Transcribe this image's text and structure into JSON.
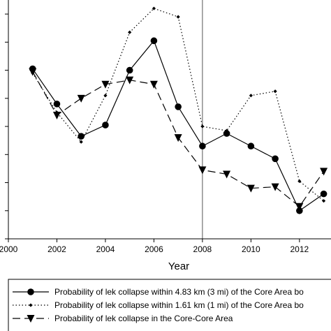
{
  "chart_data": {
    "type": "line",
    "xlabel": "Year",
    "ylabel": "",
    "xlim": [
      2000,
      2013.3
    ],
    "ylim": [
      0.0,
      0.85
    ],
    "x_ticks": [
      2000,
      2002,
      2004,
      2006,
      2008,
      2010,
      2012
    ],
    "y_ticks": [
      0.0,
      0.1,
      0.2,
      0.3,
      0.4,
      0.5,
      0.6,
      0.7,
      0.8
    ],
    "reference_line_x": 2008,
    "legend_position": "bottom",
    "grid": false,
    "series": [
      {
        "name": "Probability of lek collapse within 4.83 km (3 mi) of the Core Area bo",
        "style": "solid",
        "marker": "circle",
        "x": [
          2001,
          2002,
          2003,
          2004,
          2005,
          2006,
          2007,
          2008,
          2009,
          2010,
          2011,
          2012,
          2013
        ],
        "values": [
          0.605,
          0.48,
          0.365,
          0.405,
          0.6,
          0.705,
          0.47,
          0.33,
          0.375,
          0.33,
          0.285,
          0.1,
          0.16
        ]
      },
      {
        "name": "Probability of lek collapse within 1.61 km (1 mi) of the Core Area bo",
        "style": "dotted",
        "marker": "small-diamond",
        "x": [
          2001,
          2002,
          2003,
          2004,
          2005,
          2006,
          2007,
          2008,
          2009,
          2010,
          2011,
          2012,
          2013
        ],
        "values": [
          0.59,
          0.45,
          0.345,
          0.51,
          0.735,
          0.82,
          0.79,
          0.4,
          0.385,
          0.51,
          0.525,
          0.205,
          0.135
        ]
      },
      {
        "name": "Probability of lek collapse in the Core-Core Area",
        "style": "dashed",
        "marker": "triangle-down",
        "x": [
          2001,
          2002,
          2003,
          2004,
          2005,
          2006,
          2007,
          2008,
          2009,
          2010,
          2011,
          2012,
          2013
        ],
        "values": [
          0.595,
          0.44,
          0.5,
          0.55,
          0.565,
          0.55,
          0.36,
          0.245,
          0.23,
          0.18,
          0.185,
          0.115,
          0.24
        ]
      }
    ]
  }
}
